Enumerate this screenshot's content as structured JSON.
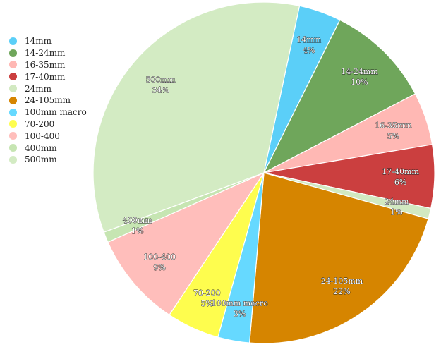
{
  "chart_data": {
    "type": "pie",
    "title": "",
    "legend_position": "top-left",
    "slices": [
      {
        "label": "14mm",
        "value": 4,
        "color": "#5bcff8"
      },
      {
        "label": "14-24mm",
        "value": 10,
        "color": "#6fa65b"
      },
      {
        "label": "16-35mm",
        "value": 5,
        "color": "#ffb8b4"
      },
      {
        "label": "17-40mm",
        "value": 6,
        "color": "#cb3f3f"
      },
      {
        "label": "24mm",
        "value": 1,
        "color": "#d2e9c1"
      },
      {
        "label": "24-105mm",
        "value": 22,
        "color": "#d68500"
      },
      {
        "label": "100mm macro",
        "value": 3,
        "color": "#66d9ff"
      },
      {
        "label": "70-200",
        "value": 5,
        "color": "#fefd4e"
      },
      {
        "label": "100-400",
        "value": 9,
        "color": "#ffbebb"
      },
      {
        "label": "400mm",
        "value": 1,
        "color": "#c6e5b2"
      },
      {
        "label": "500mm",
        "value": 34,
        "color": "#d3ebc3"
      }
    ]
  }
}
